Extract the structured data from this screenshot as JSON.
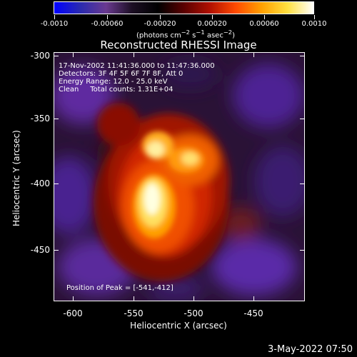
{
  "colorbar": {
    "colors": [
      "#0000ff",
      "#2a2ab0",
      "#6a3a90",
      "#1c0f24",
      "#000000",
      "#5a0000",
      "#b01000",
      "#ff4a00",
      "#ffa000",
      "#ffe040",
      "#ffffff"
    ],
    "tick_labels": [
      "-0.0010",
      "-0.00060",
      "-0.00020",
      "0.00020",
      "0.00060",
      "0.0010"
    ],
    "units_html": "(photons cm<sup>−2</sup> s<sup>−1</sup> asec<sup>−2</sup>)"
  },
  "title": "Reconstructed RHESSI Image",
  "annotations": {
    "line1": "17-Nov-2002 11:41:36.000 to 11:47:36.000",
    "line2": "Detectors: 3F 4F 5F 6F 7F 8F, Att 0",
    "line3": "Energy Range: 12.0 - 25.0 keV",
    "line4": "Clean     Total counts: 1.31E+04",
    "peak": "Position of Peak = [-541,-412]"
  },
  "axes": {
    "y_tick_labels": [
      "-300",
      "-350",
      "-400",
      "-450"
    ],
    "x_tick_labels": [
      "-600",
      "-550",
      "-500",
      "-450"
    ],
    "y_title": "Heliocentric Y (arcsec)",
    "x_title": "Heliocentric X (arcsec)"
  },
  "footer": {
    "date": "3-May-2022 07:50"
  }
}
